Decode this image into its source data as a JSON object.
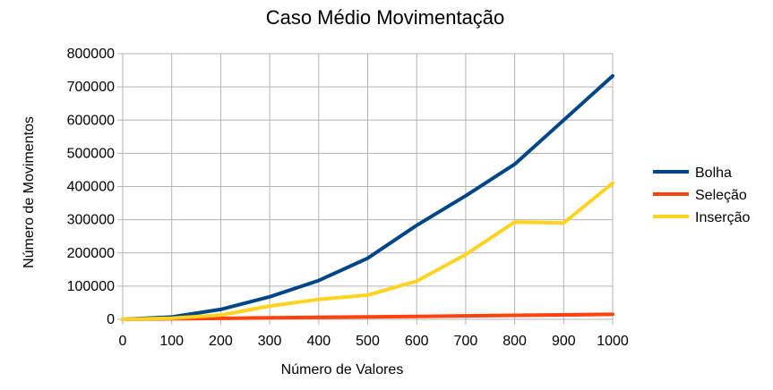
{
  "chart_data": {
    "type": "line",
    "title": "Caso Médio Movimentação",
    "xlabel": "Número de Valores",
    "ylabel": "Número de Movimentos",
    "x": [
      0,
      100,
      200,
      300,
      400,
      500,
      600,
      700,
      800,
      900,
      1000
    ],
    "x_ticks": [
      "0",
      "100",
      "200",
      "300",
      "400",
      "500",
      "600",
      "700",
      "800",
      "900",
      "1000"
    ],
    "y_ticks": [
      "0",
      "100000",
      "200000",
      "300000",
      "400000",
      "500000",
      "600000",
      "700000",
      "800000"
    ],
    "xlim": [
      0,
      1000
    ],
    "ylim": [
      0,
      800000
    ],
    "grid": true,
    "legend_position": "right",
    "series": [
      {
        "name": "Bolha",
        "color": "#004586",
        "values": [
          0,
          7000,
          30000,
          68000,
          117000,
          184000,
          283000,
          372000,
          467000,
          600000,
          733000
        ]
      },
      {
        "name": "Seleção",
        "color": "#ff420e",
        "values": [
          0,
          1500,
          3000,
          4500,
          6000,
          7500,
          9000,
          10500,
          12000,
          13500,
          15000
        ]
      },
      {
        "name": "Inserção",
        "color": "#ffd320",
        "values": [
          0,
          3500,
          13000,
          40000,
          60000,
          73000,
          115000,
          195000,
          293000,
          290000,
          410000
        ]
      }
    ]
  }
}
